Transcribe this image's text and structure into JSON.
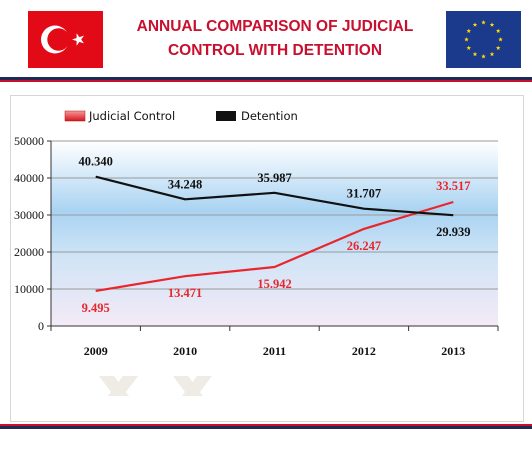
{
  "title": "ANNUAL COMPARISON OF JUDICIAL CONTROL WITH DETENTION",
  "colors": {
    "title": "#c8102e",
    "judicial": "#e8262b",
    "detention": "#111111",
    "turkey_flag": "#e30a17",
    "eu_flag": "#1c3a8c",
    "eu_stars": "#ffdd00"
  },
  "icons": {
    "left_flag": "turkey-flag-icon",
    "right_flag": "eu-flag-icon"
  },
  "chart_data": {
    "type": "line",
    "categories": [
      "2009",
      "2010",
      "2011",
      "2012",
      "2013"
    ],
    "series": [
      {
        "name": "Judicial Control",
        "values": [
          9495,
          13471,
          15942,
          26247,
          33517
        ],
        "labels": [
          "9.495",
          "13.471",
          "15.942",
          "26.247",
          "33.517"
        ]
      },
      {
        "name": "Detention",
        "values": [
          40340,
          34248,
          35987,
          31707,
          29939
        ],
        "labels": [
          "40.340",
          "34.248",
          "35.987",
          "31.707",
          "29.939"
        ]
      }
    ],
    "ylim": [
      0,
      50000
    ],
    "yticks": [
      "0",
      "10000",
      "20000",
      "30000",
      "40000",
      "50000"
    ],
    "grid": true,
    "legend": "top-left"
  }
}
